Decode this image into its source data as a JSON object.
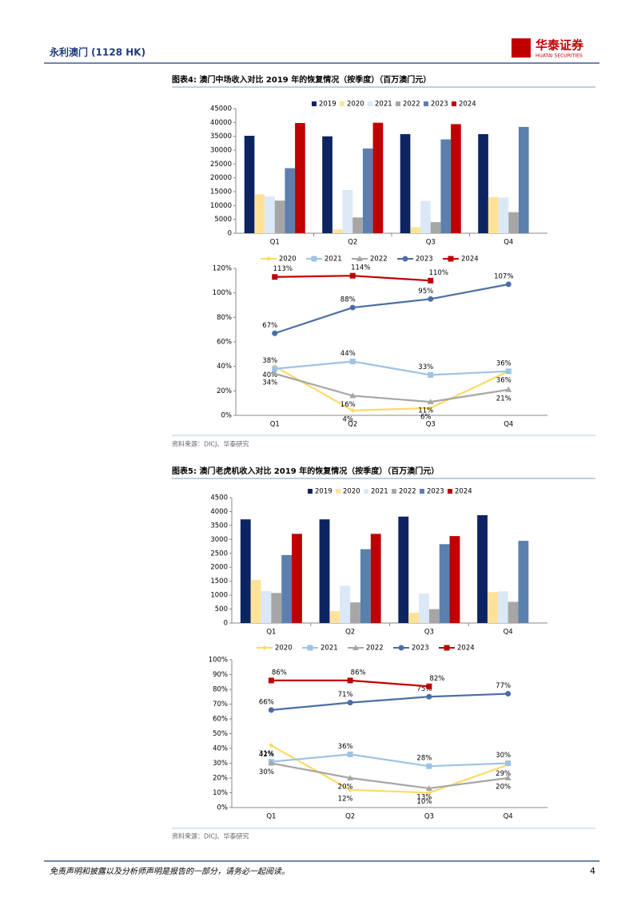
{
  "header": {
    "title": "永利澳门 (1128 HK)",
    "logo": "华泰证券",
    "logo_en": "HUATAI SECURITIES"
  },
  "figures": [
    {
      "title": "图表4:  澳门中场收入对比 2019 年的恢复情况（按季度）（百万澳门元）",
      "source": "资料来源：DICJ、华泰研究"
    },
    {
      "title": "图表5:  澳门老虎机收入对比 2019 年的恢复情况（按季度）（百万澳门元）",
      "source": "资料来源：DICJ、华泰研究"
    }
  ],
  "chart_data": [
    {
      "type": "bar",
      "categories": [
        "Q1",
        "Q2",
        "Q3",
        "Q4"
      ],
      "ylim": [
        0,
        45000
      ],
      "yticks": [
        0,
        5000,
        10000,
        15000,
        20000,
        25000,
        30000,
        35000,
        40000,
        45000
      ],
      "legend": "top",
      "series": [
        {
          "name": "2019",
          "color": "#0d2463",
          "values": [
            35200,
            35000,
            35800,
            35800
          ]
        },
        {
          "name": "2020",
          "color": "#ffe29a",
          "values": [
            14100,
            1400,
            2200,
            13100
          ]
        },
        {
          "name": "2021",
          "color": "#dbe8f6",
          "values": [
            13300,
            15600,
            11600,
            12900
          ]
        },
        {
          "name": "2022",
          "color": "#a6a6a6",
          "values": [
            11800,
            5700,
            4000,
            7600
          ]
        },
        {
          "name": "2023",
          "color": "#5b80ad",
          "values": [
            23500,
            30600,
            33900,
            38400
          ]
        },
        {
          "name": "2024",
          "color": "#c00000",
          "values": [
            39800,
            39900,
            39400,
            null
          ]
        }
      ]
    },
    {
      "type": "line",
      "categories": [
        "Q1",
        "Q2",
        "Q3",
        "Q4"
      ],
      "ylim": [
        0,
        120
      ],
      "legend": "top",
      "yticks": [
        {
          "value": 0,
          "label": "0%"
        },
        {
          "value": 20,
          "label": "20%"
        },
        {
          "value": 40,
          "label": "40%"
        },
        {
          "value": 60,
          "label": "60%"
        },
        {
          "value": 80,
          "label": "80%"
        },
        {
          "value": 100,
          "label": "100%"
        },
        {
          "value": 120,
          "label": "120%"
        }
      ],
      "series": [
        {
          "name": "2020",
          "color": "#ffd966",
          "marker": "diamond",
          "values": [
            40,
            4,
            6,
            36
          ],
          "value_labels": [
            "40%",
            "4%",
            "6%",
            "36%"
          ]
        },
        {
          "name": "2021",
          "color": "#9dc3e6",
          "marker": "square",
          "values": [
            38,
            44,
            33,
            36
          ],
          "value_labels": [
            "38%",
            "44%",
            "33%",
            "36%"
          ]
        },
        {
          "name": "2022",
          "color": "#a6a6a6",
          "marker": "triangle",
          "values": [
            34,
            16,
            11,
            21
          ],
          "value_labels": [
            "34%",
            "16%",
            "11%",
            "21%"
          ]
        },
        {
          "name": "2023",
          "color": "#4a6fa5",
          "marker": "circle",
          "values": [
            67,
            88,
            95,
            107
          ],
          "value_labels": [
            "67%",
            "88%",
            "95%",
            "107%"
          ]
        },
        {
          "name": "2024",
          "color": "#c00000",
          "marker": "square",
          "values": [
            113,
            114,
            110,
            null
          ],
          "value_labels": [
            "113%",
            "114%",
            "110%",
            null
          ]
        }
      ]
    },
    {
      "type": "bar",
      "categories": [
        "Q1",
        "Q2",
        "Q3",
        "Q4"
      ],
      "ylim": [
        0,
        4500
      ],
      "yticks": [
        0,
        500,
        1000,
        1500,
        2000,
        2500,
        3000,
        3500,
        4000,
        4500
      ],
      "legend": "top",
      "series": [
        {
          "name": "2019",
          "color": "#0d2463",
          "values": [
            3720,
            3720,
            3820,
            3870
          ]
        },
        {
          "name": "2020",
          "color": "#ffe29a",
          "values": [
            1550,
            430,
            370,
            1110
          ]
        },
        {
          "name": "2021",
          "color": "#dbe8f6",
          "values": [
            1150,
            1340,
            1060,
            1140
          ]
        },
        {
          "name": "2022",
          "color": "#a6a6a6",
          "values": [
            1080,
            740,
            500,
            760
          ]
        },
        {
          "name": "2023",
          "color": "#5b80ad",
          "values": [
            2440,
            2650,
            2830,
            2950
          ]
        },
        {
          "name": "2024",
          "color": "#c00000",
          "values": [
            3200,
            3200,
            3120,
            null
          ]
        }
      ]
    },
    {
      "type": "line",
      "categories": [
        "Q1",
        "Q2",
        "Q3",
        "Q4"
      ],
      "ylim": [
        0,
        100
      ],
      "legend": "top",
      "yticks": [
        {
          "value": 0,
          "label": "0%"
        },
        {
          "value": 10,
          "label": "10%"
        },
        {
          "value": 20,
          "label": "20%"
        },
        {
          "value": 30,
          "label": "30%"
        },
        {
          "value": 40,
          "label": "40%"
        },
        {
          "value": 50,
          "label": "50%"
        },
        {
          "value": 60,
          "label": "60%"
        },
        {
          "value": 70,
          "label": "70%"
        },
        {
          "value": 80,
          "label": "80%"
        },
        {
          "value": 90,
          "label": "90%"
        },
        {
          "value": 100,
          "label": "100%"
        }
      ],
      "series": [
        {
          "name": "2020",
          "color": "#ffd966",
          "marker": "diamond",
          "values": [
            42,
            12,
            10,
            29
          ],
          "value_labels": [
            "42%",
            "12%",
            "10%",
            "29%"
          ]
        },
        {
          "name": "2021",
          "color": "#9dc3e6",
          "marker": "square",
          "values": [
            31,
            36,
            28,
            30
          ],
          "value_labels": [
            "31%",
            "36%",
            "28%",
            "30%"
          ]
        },
        {
          "name": "2022",
          "color": "#a6a6a6",
          "marker": "triangle",
          "values": [
            30,
            20,
            13,
            20
          ],
          "value_labels": [
            "30%",
            "20%",
            "13%",
            "20%"
          ]
        },
        {
          "name": "2023",
          "color": "#4a6fa5",
          "marker": "circle",
          "values": [
            66,
            71,
            75,
            77
          ],
          "value_labels": [
            "66%",
            "71%",
            "75%",
            "77%"
          ]
        },
        {
          "name": "2024",
          "color": "#c00000",
          "marker": "square",
          "values": [
            86,
            86,
            82,
            null
          ],
          "value_labels": [
            "86%",
            "86%",
            "82%",
            null
          ]
        }
      ]
    }
  ],
  "footer": {
    "disclaimer": "免责声明和披露以及分析师声明是报告的一部分，请务必一起阅读。",
    "page": "4"
  }
}
